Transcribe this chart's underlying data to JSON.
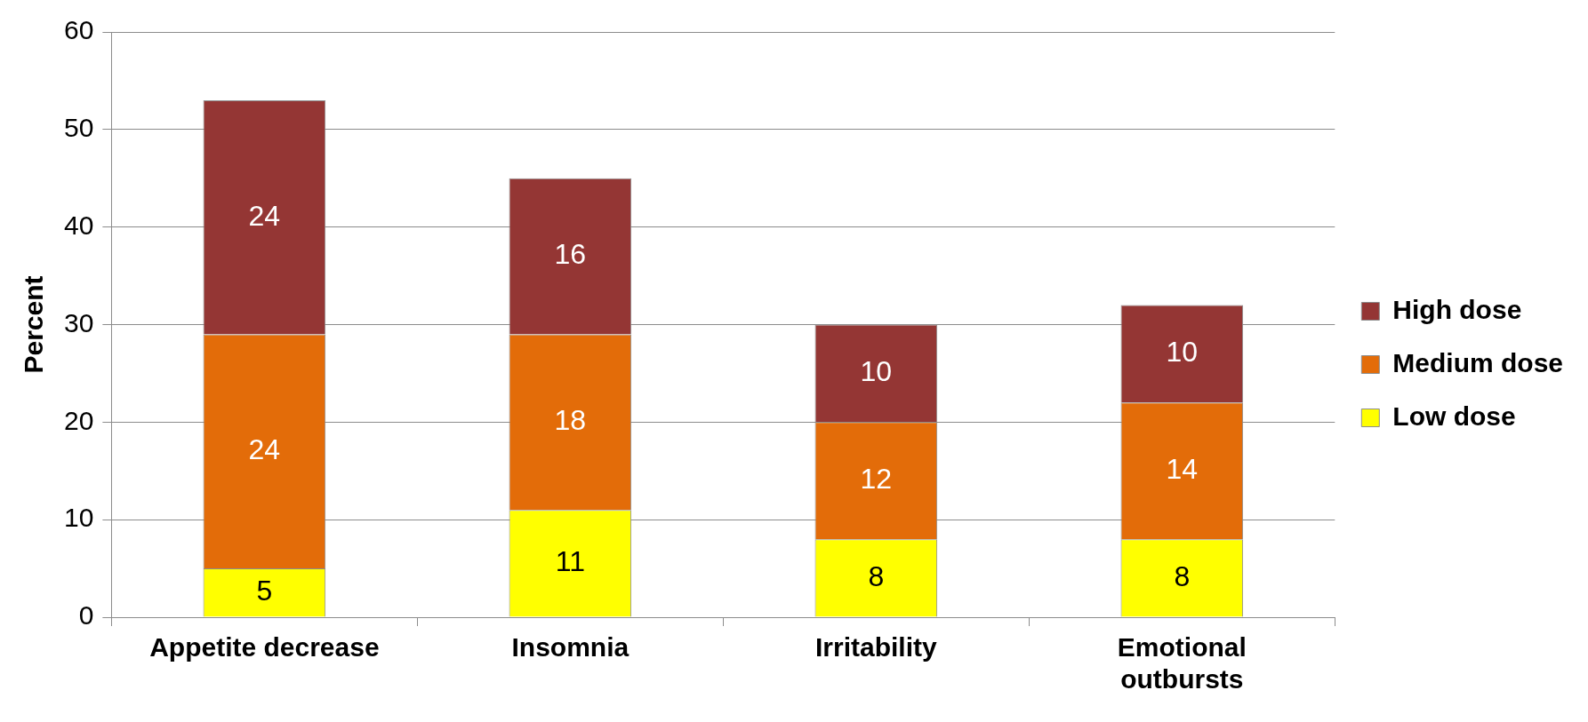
{
  "chart_data": {
    "type": "bar",
    "stacked": true,
    "ylabel": "Percent",
    "categories": [
      "Appetite decrease",
      "Insomnia",
      "Irritability",
      "Emotional outbursts"
    ],
    "series": [
      {
        "name": "Low dose",
        "color": "#ffff00",
        "values": [
          5,
          11,
          8,
          8
        ]
      },
      {
        "name": "Medium dose",
        "color": "#e36c09",
        "values": [
          24,
          18,
          12,
          14
        ]
      },
      {
        "name": "High dose",
        "color": "#943634",
        "values": [
          24,
          16,
          10,
          10
        ]
      }
    ],
    "ylim": [
      0,
      60
    ],
    "yticks": [
      0,
      10,
      20,
      30,
      40,
      50,
      60
    ],
    "grid": "y",
    "legend": "right",
    "data_labels": true
  }
}
